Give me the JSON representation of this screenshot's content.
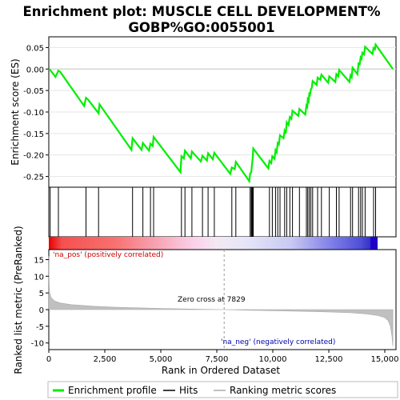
{
  "chart_data": {
    "type": "line",
    "title_line1": "Enrichment plot: MUSCLE CELL DEVELOPMENT%",
    "title_line2": "GOBP%GO:0055001",
    "xlabel": "Rank in Ordered Dataset",
    "top_panel": {
      "ylabel": "Enrichment score (ES)",
      "xlim": [
        0,
        15500
      ],
      "ylim": [
        -0.275,
        0.075
      ],
      "yticks": [
        -0.25,
        -0.2,
        -0.15,
        -0.1,
        -0.05,
        0.0,
        0.05
      ],
      "ytick_labels": [
        "-0.25",
        "-0.20",
        "-0.15",
        "-0.10",
        "-0.05",
        "0.00",
        "0.05"
      ],
      "line_color": "#00ee00",
      "es_profile": [
        [
          0,
          0.0
        ],
        [
          60,
          -0.002
        ],
        [
          300,
          -0.018
        ],
        [
          430,
          -0.004
        ],
        [
          500,
          -0.006
        ],
        [
          1580,
          -0.086
        ],
        [
          1660,
          -0.067
        ],
        [
          1750,
          -0.071
        ],
        [
          2220,
          -0.103
        ],
        [
          2260,
          -0.082
        ],
        [
          3690,
          -0.188
        ],
        [
          3740,
          -0.161
        ],
        [
          4140,
          -0.188
        ],
        [
          4200,
          -0.172
        ],
        [
          4470,
          -0.19
        ],
        [
          4540,
          -0.174
        ],
        [
          4640,
          -0.179
        ],
        [
          4680,
          -0.158
        ],
        [
          5880,
          -0.24
        ],
        [
          5920,
          -0.203
        ],
        [
          6030,
          -0.208
        ],
        [
          6080,
          -0.19
        ],
        [
          6340,
          -0.208
        ],
        [
          6390,
          -0.192
        ],
        [
          6790,
          -0.215
        ],
        [
          6860,
          -0.202
        ],
        [
          7060,
          -0.213
        ],
        [
          7110,
          -0.196
        ],
        [
          7320,
          -0.21
        ],
        [
          7390,
          -0.195
        ],
        [
          8100,
          -0.244
        ],
        [
          8170,
          -0.229
        ],
        [
          8300,
          -0.233
        ],
        [
          8350,
          -0.216
        ],
        [
          8950,
          -0.261
        ],
        [
          8990,
          -0.243
        ],
        [
          9040,
          -0.24
        ],
        [
          9070,
          -0.222
        ],
        [
          9100,
          -0.209
        ],
        [
          9130,
          -0.185
        ],
        [
          9800,
          -0.231
        ],
        [
          9850,
          -0.214
        ],
        [
          9930,
          -0.219
        ],
        [
          9980,
          -0.203
        ],
        [
          10080,
          -0.209
        ],
        [
          10120,
          -0.189
        ],
        [
          10170,
          -0.194
        ],
        [
          10220,
          -0.172
        ],
        [
          10270,
          -0.175
        ],
        [
          10320,
          -0.154
        ],
        [
          10480,
          -0.161
        ],
        [
          10530,
          -0.144
        ],
        [
          10580,
          -0.15
        ],
        [
          10620,
          -0.124
        ],
        [
          10700,
          -0.13
        ],
        [
          10760,
          -0.112
        ],
        [
          10830,
          -0.116
        ],
        [
          10880,
          -0.097
        ],
        [
          11140,
          -0.109
        ],
        [
          11190,
          -0.093
        ],
        [
          11450,
          -0.106
        ],
        [
          11500,
          -0.085
        ],
        [
          11540,
          -0.088
        ],
        [
          11560,
          -0.071
        ],
        [
          11600,
          -0.075
        ],
        [
          11630,
          -0.058
        ],
        [
          11660,
          -0.06
        ],
        [
          11700,
          -0.047
        ],
        [
          11740,
          -0.044
        ],
        [
          11780,
          -0.028
        ],
        [
          11960,
          -0.037
        ],
        [
          12000,
          -0.02
        ],
        [
          12120,
          -0.025
        ],
        [
          12170,
          -0.013
        ],
        [
          12470,
          -0.032
        ],
        [
          12520,
          -0.017
        ],
        [
          12790,
          -0.03
        ],
        [
          12840,
          -0.012
        ],
        [
          12920,
          -0.017
        ],
        [
          12960,
          -0.002
        ],
        [
          13420,
          -0.03
        ],
        [
          13470,
          -0.015
        ],
        [
          13520,
          -0.019
        ],
        [
          13560,
          0.003
        ],
        [
          13780,
          -0.012
        ],
        [
          13830,
          0.013
        ],
        [
          13880,
          0.011
        ],
        [
          13920,
          0.027
        ],
        [
          13960,
          0.024
        ],
        [
          14000,
          0.038
        ],
        [
          14070,
          0.034
        ],
        [
          14120,
          0.052
        ],
        [
          14450,
          0.035
        ],
        [
          14500,
          0.049
        ],
        [
          14560,
          0.046
        ],
        [
          14590,
          0.057
        ],
        [
          15360,
          0.0
        ]
      ]
    },
    "hits": [
      60,
      430,
      1660,
      2220,
      3740,
      4200,
      4540,
      4680,
      5920,
      6080,
      6390,
      6860,
      7110,
      7390,
      8170,
      8350,
      8990,
      9040,
      9070,
      9100,
      9130,
      9850,
      9980,
      10120,
      10220,
      10320,
      10530,
      10620,
      10760,
      10880,
      11190,
      11500,
      11560,
      11630,
      11700,
      11780,
      12000,
      12170,
      12520,
      12840,
      12960,
      13470,
      13560,
      13830,
      13920,
      14000,
      14120,
      14500,
      14590
    ],
    "bottom_panel": {
      "ylabel": "Ranked list metric (PreRanked)",
      "ylim": [
        -12,
        18
      ],
      "yticks": [
        -10,
        -5,
        0,
        5,
        10,
        15
      ],
      "ytick_labels": [
        "-10",
        "-5",
        "0",
        "5",
        "10",
        "15"
      ],
      "xticks": [
        0,
        2500,
        5000,
        7500,
        10000,
        12500,
        15000
      ],
      "xtick_labels": [
        "0",
        "2,500",
        "5,000",
        "7,500",
        "10,000",
        "12,500",
        "15,000"
      ],
      "zero_cross_rank": 7829,
      "zero_cross_label": "Zero cross at 7829",
      "pos_label": "'na_pos' (positively correlated)",
      "neg_label": "'na_neg' (negatively correlated)",
      "pos_color": "#cc0000",
      "neg_color": "#0000aa",
      "metric_curve": [
        [
          0,
          16
        ],
        [
          15,
          8
        ],
        [
          40,
          5
        ],
        [
          100,
          3.6
        ],
        [
          250,
          2.6
        ],
        [
          500,
          2.0
        ],
        [
          1000,
          1.5
        ],
        [
          2000,
          1.0
        ],
        [
          3000,
          0.7
        ],
        [
          5000,
          0.35
        ],
        [
          7000,
          0.08
        ],
        [
          7829,
          0
        ],
        [
          9000,
          -0.2
        ],
        [
          11000,
          -0.45
        ],
        [
          12500,
          -0.7
        ],
        [
          13500,
          -0.95
        ],
        [
          14200,
          -1.3
        ],
        [
          14700,
          -1.8
        ],
        [
          15000,
          -2.4
        ],
        [
          15150,
          -3.3
        ],
        [
          15250,
          -5
        ],
        [
          15320,
          -8
        ],
        [
          15360,
          -11
        ]
      ]
    },
    "legend": {
      "items": [
        {
          "label": "Enrichment profile",
          "color": "#00ee00"
        },
        {
          "label": "Hits",
          "color": "#000000"
        },
        {
          "label": "Ranking metric scores",
          "color": "#c0c0c0"
        }
      ]
    }
  }
}
